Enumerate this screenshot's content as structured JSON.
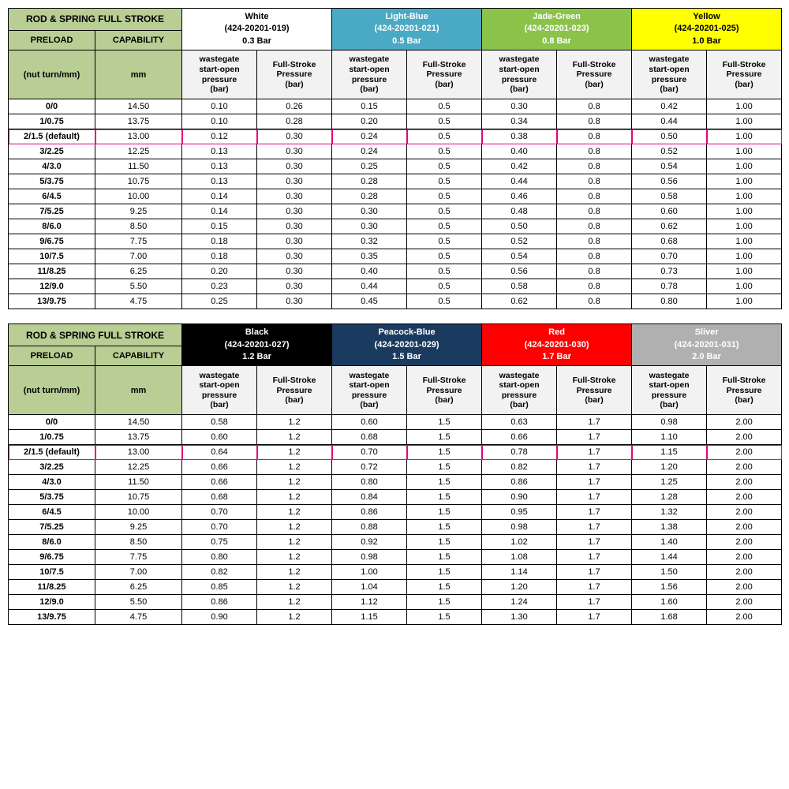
{
  "labels": {
    "title": "ROD & SPRING FULL STROKE",
    "preload": "PRELOAD",
    "capability": "CAPABILITY",
    "unit": "(nut turn/mm)",
    "mm": "mm",
    "wg": "wastegate start-open pressure (bar)",
    "fs": "Full-Stroke Pressure (bar)"
  },
  "springs_top": [
    {
      "name": "White",
      "part": "(424-20201-019)",
      "bar": "0.3 Bar",
      "bg": "#ffffff",
      "fg": "#000000"
    },
    {
      "name": "Light-Blue",
      "part": "(424-20201-021)",
      "bar": "0.5 Bar",
      "bg": "#4aa9c4",
      "fg": "#ffffff"
    },
    {
      "name": "Jade-Green",
      "part": "(424-20201-023)",
      "bar": "0.8 Bar",
      "bg": "#8bc34a",
      "fg": "#ffffff"
    },
    {
      "name": "Yellow",
      "part": "(424-20201-025)",
      "bar": "1.0 Bar",
      "bg": "#ffff00",
      "fg": "#000000"
    }
  ],
  "springs_bot": [
    {
      "name": "Black",
      "part": "(424-20201-027)",
      "bar": "1.2 Bar",
      "bg": "#000000",
      "fg": "#ffffff"
    },
    {
      "name": "Peacock-Blue",
      "part": "(424-20201-029)",
      "bar": "1.5 Bar",
      "bg": "#1b3a5f",
      "fg": "#ffffff"
    },
    {
      "name": "Red",
      "part": "(424-20201-030)",
      "bar": "1.7 Bar",
      "bg": "#ff0000",
      "fg": "#ffffff"
    },
    {
      "name": "Sliver",
      "part": "(424-20201-031)",
      "bar": "2.0 Bar",
      "bg": "#b0b0b0",
      "fg": "#ffffff"
    }
  ],
  "preloads": [
    {
      "p": "0/0",
      "c": "14.50"
    },
    {
      "p": "1/0.75",
      "c": "13.75"
    },
    {
      "p": "2/1.5 (default)",
      "c": "13.00",
      "hl": true
    },
    {
      "p": "3/2.25",
      "c": "12.25"
    },
    {
      "p": "4/3.0",
      "c": "11.50"
    },
    {
      "p": "5/3.75",
      "c": "10.75"
    },
    {
      "p": "6/4.5",
      "c": "10.00"
    },
    {
      "p": "7/5.25",
      "c": "9.25"
    },
    {
      "p": "8/6.0",
      "c": "8.50"
    },
    {
      "p": "9/6.75",
      "c": "7.75"
    },
    {
      "p": "10/7.5",
      "c": "7.00"
    },
    {
      "p": "11/8.25",
      "c": "6.25"
    },
    {
      "p": "12/9.0",
      "c": "5.50"
    },
    {
      "p": "13/9.75",
      "c": "4.75"
    }
  ],
  "data_top": [
    [
      "0.10",
      "0.26",
      "0.15",
      "0.5",
      "0.30",
      "0.8",
      "0.42",
      "1.00"
    ],
    [
      "0.10",
      "0.28",
      "0.20",
      "0.5",
      "0.34",
      "0.8",
      "0.44",
      "1.00"
    ],
    [
      "0.12",
      "0.30",
      "0.24",
      "0.5",
      "0.38",
      "0.8",
      "0.50",
      "1.00"
    ],
    [
      "0.13",
      "0.30",
      "0.24",
      "0.5",
      "0.40",
      "0.8",
      "0.52",
      "1.00"
    ],
    [
      "0.13",
      "0.30",
      "0.25",
      "0.5",
      "0.42",
      "0.8",
      "0.54",
      "1.00"
    ],
    [
      "0.13",
      "0.30",
      "0.28",
      "0.5",
      "0.44",
      "0.8",
      "0.56",
      "1.00"
    ],
    [
      "0.14",
      "0.30",
      "0.28",
      "0.5",
      "0.46",
      "0.8",
      "0.58",
      "1.00"
    ],
    [
      "0.14",
      "0.30",
      "0.30",
      "0.5",
      "0.48",
      "0.8",
      "0.60",
      "1.00"
    ],
    [
      "0.15",
      "0.30",
      "0.30",
      "0.5",
      "0.50",
      "0.8",
      "0.62",
      "1.00"
    ],
    [
      "0.18",
      "0.30",
      "0.32",
      "0.5",
      "0.52",
      "0.8",
      "0.68",
      "1.00"
    ],
    [
      "0.18",
      "0.30",
      "0.35",
      "0.5",
      "0.54",
      "0.8",
      "0.70",
      "1.00"
    ],
    [
      "0.20",
      "0.30",
      "0.40",
      "0.5",
      "0.56",
      "0.8",
      "0.73",
      "1.00"
    ],
    [
      "0.23",
      "0.30",
      "0.44",
      "0.5",
      "0.58",
      "0.8",
      "0.78",
      "1.00"
    ],
    [
      "0.25",
      "0.30",
      "0.45",
      "0.5",
      "0.62",
      "0.8",
      "0.80",
      "1.00"
    ]
  ],
  "data_bot": [
    [
      "0.58",
      "1.2",
      "0.60",
      "1.5",
      "0.63",
      "1.7",
      "0.98",
      "2.00"
    ],
    [
      "0.60",
      "1.2",
      "0.68",
      "1.5",
      "0.66",
      "1.7",
      "1.10",
      "2.00"
    ],
    [
      "0.64",
      "1.2",
      "0.70",
      "1.5",
      "0.78",
      "1.7",
      "1.15",
      "2.00"
    ],
    [
      "0.66",
      "1.2",
      "0.72",
      "1.5",
      "0.82",
      "1.7",
      "1.20",
      "2.00"
    ],
    [
      "0.66",
      "1.2",
      "0.80",
      "1.5",
      "0.86",
      "1.7",
      "1.25",
      "2.00"
    ],
    [
      "0.68",
      "1.2",
      "0.84",
      "1.5",
      "0.90",
      "1.7",
      "1.28",
      "2.00"
    ],
    [
      "0.70",
      "1.2",
      "0.86",
      "1.5",
      "0.95",
      "1.7",
      "1.32",
      "2.00"
    ],
    [
      "0.70",
      "1.2",
      "0.88",
      "1.5",
      "0.98",
      "1.7",
      "1.38",
      "2.00"
    ],
    [
      "0.75",
      "1.2",
      "0.92",
      "1.5",
      "1.02",
      "1.7",
      "1.40",
      "2.00"
    ],
    [
      "0.80",
      "1.2",
      "0.98",
      "1.5",
      "1.08",
      "1.7",
      "1.44",
      "2.00"
    ],
    [
      "0.82",
      "1.2",
      "1.00",
      "1.5",
      "1.14",
      "1.7",
      "1.50",
      "2.00"
    ],
    [
      "0.85",
      "1.2",
      "1.04",
      "1.5",
      "1.20",
      "1.7",
      "1.56",
      "2.00"
    ],
    [
      "0.86",
      "1.2",
      "1.12",
      "1.5",
      "1.24",
      "1.7",
      "1.60",
      "2.00"
    ],
    [
      "0.90",
      "1.2",
      "1.15",
      "1.5",
      "1.30",
      "1.7",
      "1.68",
      "2.00"
    ]
  ],
  "col_widths": {
    "preload": "110",
    "cap": "110",
    "data": "95"
  }
}
